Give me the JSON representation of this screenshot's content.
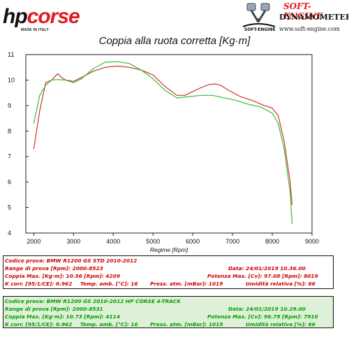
{
  "header": {
    "logo_left": "hpcorse",
    "logo_left_part1": "hp",
    "logo_left_part2": "corse",
    "logo_left_sub": "MADE IN ITALY",
    "logo_right_brand": "SOFT-ENGINE",
    "logo_right_mark": "SOFT-ENGINE",
    "logo_right_line1": "DYNAMOMETERS",
    "logo_right_line2": "www.soft-engine.com"
  },
  "chart_data": {
    "type": "line",
    "title": "Coppia alla ruota corretta [Kg·m]",
    "xlabel": "Regime [Rpm]",
    "ylabel": "",
    "xlim": [
      1800,
      9000
    ],
    "ylim": [
      4,
      11
    ],
    "xticks": [
      2000,
      3000,
      4000,
      5000,
      6000,
      7000,
      8000,
      9000
    ],
    "yticks": [
      4,
      5,
      6,
      7,
      8,
      9,
      10,
      11
    ],
    "grid": false,
    "legend": "none",
    "series": [
      {
        "color": "#d03030",
        "x": [
          2000,
          2150,
          2300,
          2450,
          2600,
          2700,
          2800,
          3000,
          3200,
          3500,
          3800,
          4100,
          4400,
          4700,
          5000,
          5300,
          5600,
          5800,
          6000,
          6200,
          6400,
          6550,
          6700,
          6900,
          7200,
          7500,
          7800,
          8000,
          8150,
          8300,
          8450,
          8500
        ],
        "y": [
          7.3,
          8.8,
          9.9,
          10.0,
          10.25,
          10.1,
          10.0,
          9.95,
          10.1,
          10.35,
          10.5,
          10.55,
          10.5,
          10.4,
          10.2,
          9.75,
          9.4,
          9.4,
          9.55,
          9.7,
          9.82,
          9.85,
          9.8,
          9.6,
          9.35,
          9.2,
          9.0,
          8.9,
          8.6,
          7.6,
          6.0,
          5.1
        ]
      },
      {
        "color": "#30c030",
        "x": [
          2000,
          2150,
          2300,
          2450,
          2600,
          2800,
          3000,
          3200,
          3500,
          3800,
          4100,
          4400,
          4700,
          5000,
          5300,
          5600,
          5900,
          6200,
          6500,
          6800,
          7100,
          7400,
          7700,
          8000,
          8150,
          8300,
          8450,
          8500
        ],
        "y": [
          8.3,
          9.4,
          9.8,
          10.0,
          10.02,
          10.0,
          9.9,
          10.05,
          10.45,
          10.7,
          10.72,
          10.65,
          10.4,
          10.05,
          9.6,
          9.3,
          9.35,
          9.4,
          9.4,
          9.3,
          9.2,
          9.05,
          8.95,
          8.7,
          8.3,
          7.3,
          5.6,
          4.35
        ]
      }
    ]
  },
  "panels": [
    {
      "name": "std",
      "rows": [
        [
          "Codice prova: BMW R1200 GS STD   2010-2012",
          "",
          ""
        ],
        [
          "Range di prova [Rpm]: 2000-8523",
          "",
          "Data: 24/01/2019  10.36.00"
        ],
        [
          "Coppia Max. [Kg·m]: 10.56  [Rpm]: 4209",
          "",
          "Potenza Max. [Cv]: 97.08  [Rpm]: 8019"
        ],
        [
          "K corr. [95/1/CE]: 0.962",
          "Temp. amb. [°C]: 16",
          "Press. atm. [mBar]: 1019",
          "Umidità relativa [%]: 66"
        ]
      ]
    },
    {
      "name": "hp",
      "rows": [
        [
          "Codice prova: BMW R1200 GS   2010-2012 HP CORSE 4-TRACK",
          "",
          ""
        ],
        [
          "Range di prova [Rpm]: 2000-8531",
          "",
          "Data: 24/01/2019  10.29.00"
        ],
        [
          "Coppia Max. [Kg·m]: 10.73  [Rpm]: 4114",
          "",
          "Potenza Max. [Cv]: 96.79  [Rpm]: 7910"
        ],
        [
          "K corr. [95/1/CE]: 0.962",
          "Temp. amb. [°C]: 16",
          "Press. atm. [mBar]: 1019",
          "Umidità relativa [%]: 66"
        ]
      ]
    }
  ]
}
